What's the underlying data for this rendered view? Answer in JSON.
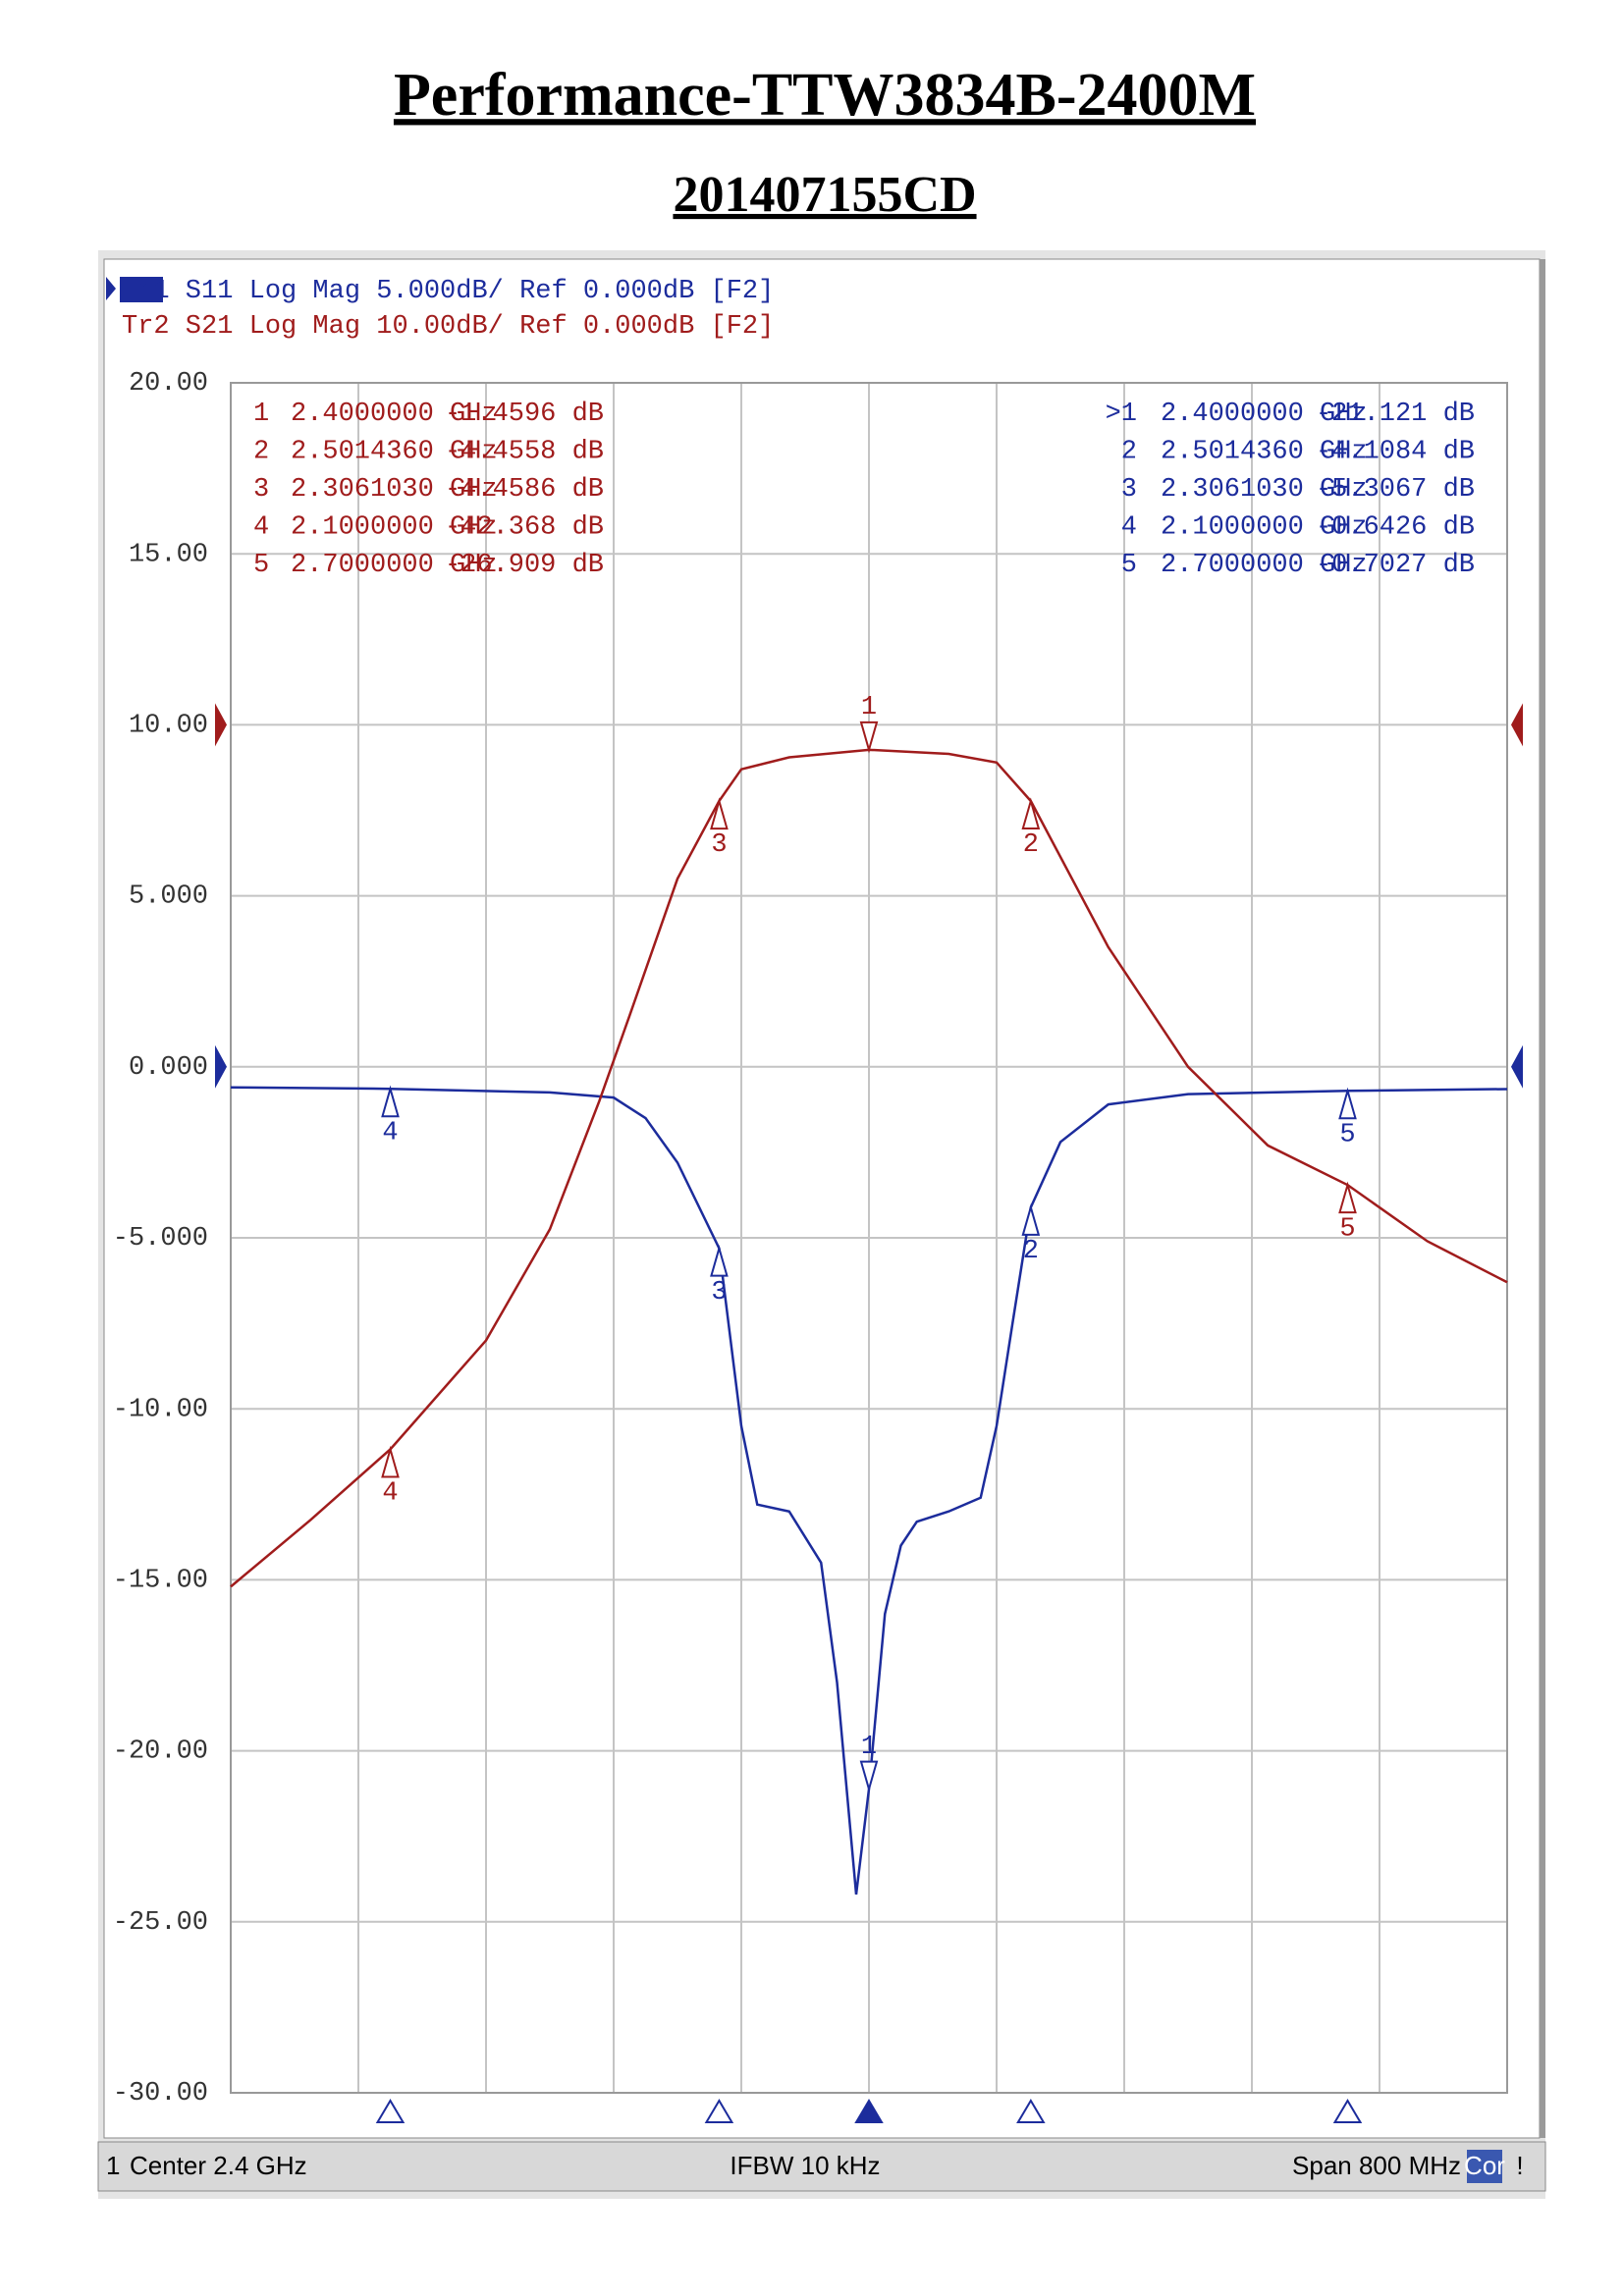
{
  "header": {
    "title": "Performance-TTW3834B-2400M",
    "subtitle": "201407155CD"
  },
  "chart_data": {
    "type": "line",
    "trace_lines": [
      "Tr1 S11 Log Mag 5.000dB/ Ref 0.000dB [F2]",
      "Tr2 S21 Log Mag 10.00dB/ Ref 0.000dB [F2]"
    ],
    "xlim": [
      2.0,
      2.8
    ],
    "ylim": [
      -30,
      20
    ],
    "yticks": [
      {
        "value": 20,
        "label": "20.00"
      },
      {
        "value": 15,
        "label": "15.00"
      },
      {
        "value": 10,
        "label": "10.00"
      },
      {
        "value": 5,
        "label": "5.000"
      },
      {
        "value": 0,
        "label": "0.000"
      },
      {
        "value": -5,
        "label": "-5.000"
      },
      {
        "value": -10,
        "label": "-10.00"
      },
      {
        "value": -15,
        "label": "-15.00"
      },
      {
        "value": -20,
        "label": "-20.00"
      },
      {
        "value": -25,
        "label": "-25.00"
      },
      {
        "value": -30,
        "label": "-30.00"
      }
    ],
    "y2lim": [
      -80,
      20
    ],
    "grid": true,
    "series": [
      {
        "name": "S11",
        "color": "#1c2c9c",
        "x": [
          2.0,
          2.1,
          2.2,
          2.24,
          2.26,
          2.28,
          2.306103,
          2.32,
          2.33,
          2.35,
          2.37,
          2.38,
          2.392,
          2.4,
          2.41,
          2.42,
          2.43,
          2.45,
          2.47,
          2.48,
          2.49,
          2.501436,
          2.52,
          2.55,
          2.6,
          2.7,
          2.8
        ],
        "values": [
          -0.6,
          -0.6426,
          -0.75,
          -0.9,
          -1.5,
          -2.8,
          -5.3067,
          -10.5,
          -12.8,
          -13.0,
          -14.5,
          -18,
          -24.2,
          -21.121,
          -16,
          -14,
          -13.3,
          -13.0,
          -12.6,
          -10.5,
          -7.5,
          -4.1084,
          -2.2,
          -1.1,
          -0.8,
          -0.7027,
          -0.65
        ]
      },
      {
        "name": "S21",
        "color": "#a01c1c",
        "axis": "y2",
        "x": [
          2.0,
          2.05,
          2.1,
          2.16,
          2.2,
          2.231,
          2.25,
          2.28,
          2.306103,
          2.32,
          2.35,
          2.4,
          2.45,
          2.48,
          2.501436,
          2.55,
          2.6,
          2.65,
          2.7,
          2.75,
          2.8
        ],
        "values": [
          -50.4,
          -46.5,
          -42.368,
          -36,
          -29.5,
          -22,
          -17,
          -9,
          -4.4586,
          -2.6,
          -1.9,
          -1.4596,
          -1.7,
          -2.2,
          -4.4558,
          -13,
          -20,
          -24.6,
          -26.909,
          -30.2,
          -32.6
        ]
      }
    ],
    "markers": [
      {
        "label": "1",
        "s11_row_label": ">1",
        "x": 2.4,
        "x_label": "2.4000000 GHz",
        "s21": -1.4596,
        "s21_label": "-1.4596 dB",
        "s11": -21.121,
        "s11_label": "-21.121 dB"
      },
      {
        "label": "2",
        "s11_row_label": "2",
        "x": 2.501436,
        "x_label": "2.5014360 GHz",
        "s21": -4.4558,
        "s21_label": "-4.4558 dB",
        "s11": -4.1084,
        "s11_label": "-4.1084 dB"
      },
      {
        "label": "3",
        "s11_row_label": "3",
        "x": 2.306103,
        "x_label": "2.3061030 GHz",
        "s21": -4.4586,
        "s21_label": "-4.4586 dB",
        "s11": -5.3067,
        "s11_label": "-5.3067 dB"
      },
      {
        "label": "4",
        "s11_row_label": "4",
        "x": 2.1,
        "x_label": "2.1000000 GHz",
        "s21": -42.368,
        "s21_label": "-42.368 dB",
        "s11": -0.6426,
        "s11_label": "-0.6426 dB"
      },
      {
        "label": "5",
        "s11_row_label": "5",
        "x": 2.7,
        "x_label": "2.7000000 GHz",
        "s21": -26.909,
        "s21_label": "-26.909 dB",
        "s11": -0.7027,
        "s11_label": "-0.7027 dB"
      }
    ],
    "footer": {
      "channel": "1",
      "center": "Center 2.4 GHz",
      "ifbw": "IFBW 10 kHz",
      "span": "Span 800 MHz",
      "cor": "Cor",
      "flag": "!"
    }
  }
}
